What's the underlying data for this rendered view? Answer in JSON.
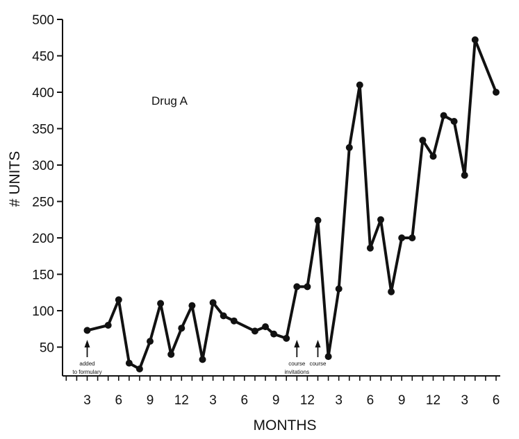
{
  "chart_data": {
    "type": "line",
    "title": "",
    "xlabel": "MONTHS",
    "ylabel": "# UNITS",
    "series_label": "Drug A",
    "ylim": [
      0,
      500
    ],
    "y_ticks": [
      50,
      100,
      150,
      200,
      250,
      300,
      350,
      400,
      450,
      500
    ],
    "x_ticks": [
      {
        "month": 3,
        "label": "3"
      },
      {
        "month": 6,
        "label": "6"
      },
      {
        "month": 9,
        "label": "9"
      },
      {
        "month": 12,
        "label": "12"
      },
      {
        "month": 15,
        "label": "3"
      },
      {
        "month": 18,
        "label": "6"
      },
      {
        "month": 21,
        "label": "9"
      },
      {
        "month": 24,
        "label": "12"
      },
      {
        "month": 27,
        "label": "3"
      },
      {
        "month": 30,
        "label": "6"
      },
      {
        "month": 33,
        "label": "9"
      },
      {
        "month": 36,
        "label": "12"
      },
      {
        "month": 39,
        "label": "3"
      },
      {
        "month": 42,
        "label": "6"
      }
    ],
    "xlim": [
      1,
      42
    ],
    "series": [
      {
        "x": [
          3,
          5,
          6,
          7,
          8,
          9,
          10,
          11,
          12,
          13,
          14,
          15,
          16,
          17,
          19,
          20,
          20.8,
          22,
          23,
          24,
          25,
          26,
          27,
          28,
          29,
          30,
          31,
          32,
          33,
          34,
          35,
          36,
          37,
          38,
          39,
          40,
          42
        ],
        "y": [
          73,
          80,
          115,
          28,
          20,
          58,
          110,
          40,
          76,
          107,
          33,
          111,
          93,
          86,
          72,
          78,
          68,
          62,
          133,
          133,
          224,
          37,
          130,
          324,
          410,
          186,
          225,
          126,
          200,
          200,
          334,
          312,
          368,
          360,
          286,
          472,
          400
        ]
      }
    ],
    "annotations": [
      {
        "month": 3,
        "lines": [
          "added",
          "to formulary"
        ]
      },
      {
        "month": 23,
        "lines": [
          "course",
          "invitations"
        ]
      },
      {
        "month": 25,
        "lines": [
          "course"
        ]
      }
    ],
    "grid": false,
    "legend": "none"
  }
}
